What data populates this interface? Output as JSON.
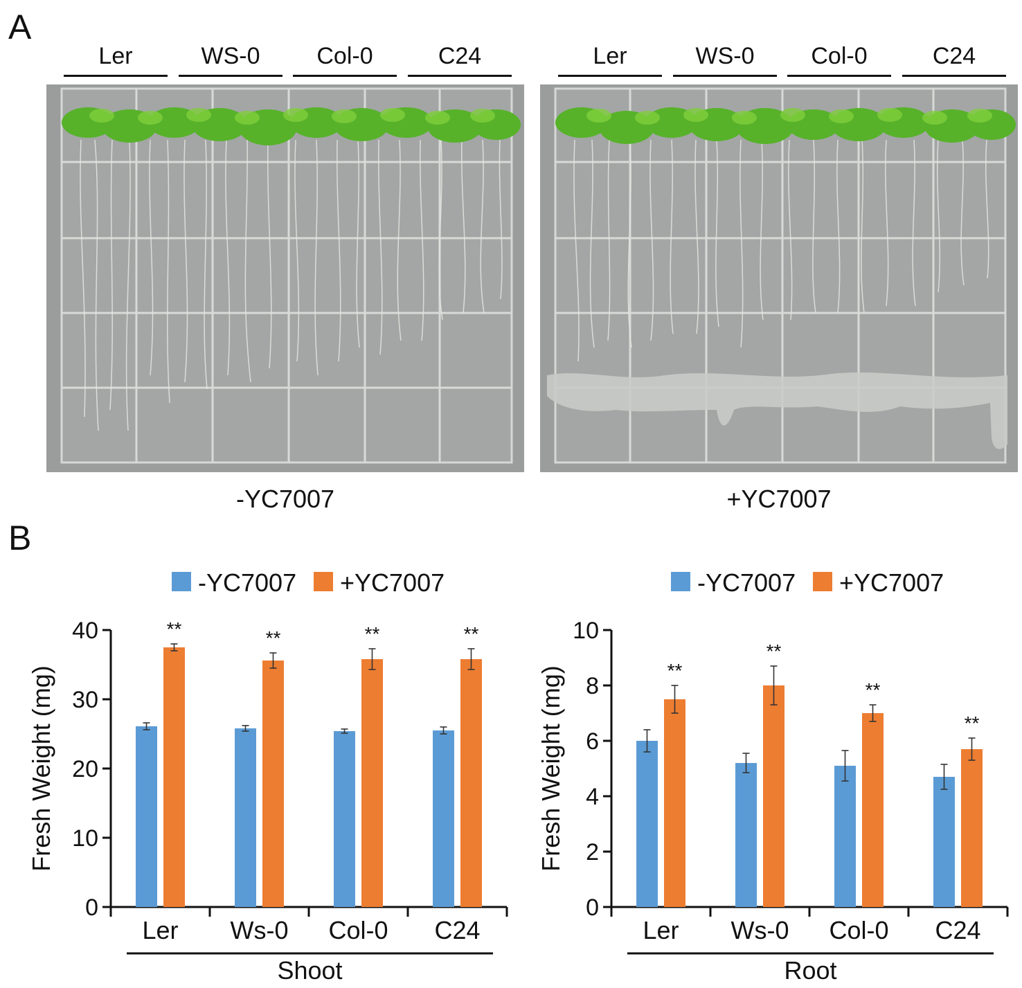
{
  "panel_a": {
    "letter": "A",
    "strains": [
      "Ler",
      "WS-0",
      "Col-0",
      "C24"
    ],
    "conditions": [
      "-YC7007",
      "+YC7007"
    ]
  },
  "panel_b": {
    "letter": "B"
  },
  "colors": {
    "control": "#5b9bd5",
    "treated": "#ed7d31",
    "photo_background": "#9a9d9c"
  },
  "chart_data": [
    {
      "type": "bar",
      "title": "",
      "categories": [
        "Ler",
        "Ws-0",
        "Col-0",
        "C24"
      ],
      "group_label": "Shoot",
      "ylabel": "Fresh Weight (mg)",
      "xlabel": "Shoot",
      "ylim": [
        0,
        40
      ],
      "yticks": [
        0,
        10,
        20,
        30,
        40
      ],
      "legend": "top",
      "series": [
        {
          "name": "-YC7007",
          "color": "#5b9bd5",
          "values": [
            26.1,
            25.8,
            25.4,
            25.5
          ],
          "errors": [
            0.5,
            0.4,
            0.3,
            0.5
          ],
          "sig": [
            "",
            "",
            "",
            ""
          ]
        },
        {
          "name": "+YC7007",
          "color": "#ed7d31",
          "values": [
            37.5,
            35.6,
            35.8,
            35.8
          ],
          "errors": [
            0.5,
            1.1,
            1.5,
            1.5
          ],
          "sig": [
            "**",
            "**",
            "**",
            "**"
          ]
        }
      ]
    },
    {
      "type": "bar",
      "title": "",
      "categories": [
        "Ler",
        "Ws-0",
        "Col-0",
        "C24"
      ],
      "group_label": "Root",
      "ylabel": "Fresh Weight (mg)",
      "xlabel": "Root",
      "ylim": [
        0,
        10
      ],
      "yticks": [
        0,
        2,
        4,
        6,
        8,
        10
      ],
      "legend": "top",
      "series": [
        {
          "name": "-YC7007",
          "color": "#5b9bd5",
          "values": [
            6.0,
            5.2,
            5.1,
            4.7
          ],
          "errors": [
            0.4,
            0.35,
            0.55,
            0.45
          ],
          "sig": [
            "",
            "",
            "",
            ""
          ]
        },
        {
          "name": "+YC7007",
          "color": "#ed7d31",
          "values": [
            7.5,
            8.0,
            7.0,
            5.7
          ],
          "errors": [
            0.5,
            0.7,
            0.3,
            0.4
          ],
          "sig": [
            "**",
            "**",
            "**",
            "**"
          ]
        }
      ]
    }
  ]
}
